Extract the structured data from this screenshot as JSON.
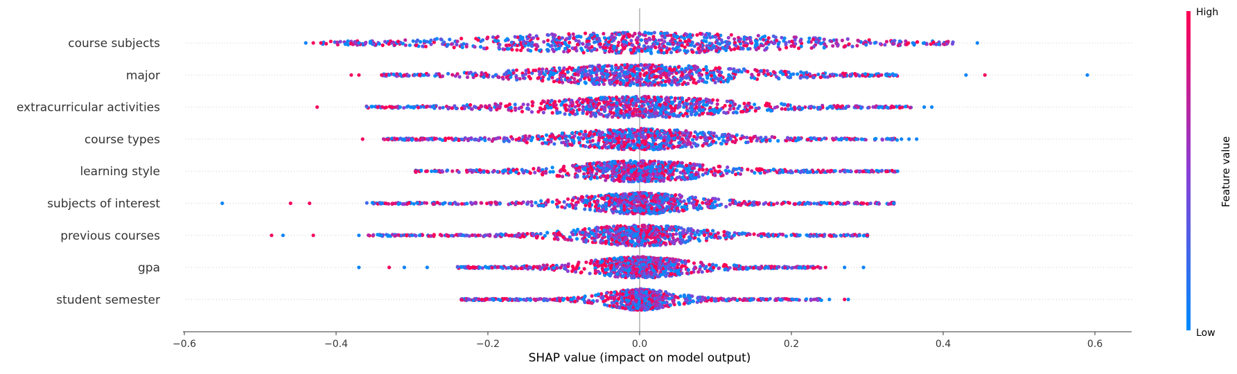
{
  "chart_data": {
    "type": "scatter",
    "subtype": "shap-beeswarm",
    "xlabel": "SHAP value (impact on model output)",
    "xlim": [
      -0.6,
      0.65
    ],
    "x_ticks": [
      -0.6,
      -0.4,
      -0.2,
      0.0,
      0.2,
      0.4,
      0.6
    ],
    "x_tick_labels": [
      "−0.6",
      "−0.4",
      "−0.2",
      "0.0",
      "0.2",
      "0.4",
      "0.6"
    ],
    "zero_line": 0,
    "colorbar": {
      "title": "Feature value",
      "high_label": "High",
      "low_label": "Low",
      "high_color": "#ff0052",
      "low_color": "#008bfb"
    },
    "features": [
      {
        "name": "course subjects",
        "min": -0.44,
        "max": 0.445,
        "spread": 0.42,
        "core": 0.17,
        "outliers": [
          -0.44,
          -0.43,
          -0.42,
          -0.37,
          0.31,
          0.36,
          0.375,
          0.445
        ]
      },
      {
        "name": "major",
        "min": -0.38,
        "max": 0.59,
        "spread": 0.34,
        "core": 0.11,
        "outliers": [
          -0.38,
          -0.37,
          -0.34,
          -0.33,
          -0.31,
          0.27,
          0.43,
          0.455,
          0.59
        ]
      },
      {
        "name": "extracurricular activities",
        "min": -0.425,
        "max": 0.385,
        "spread": 0.36,
        "core": 0.1,
        "outliers": [
          -0.425,
          -0.345,
          -0.3,
          0.265,
          0.335,
          0.375,
          0.385
        ]
      },
      {
        "name": "course types",
        "min": -0.365,
        "max": 0.365,
        "spread": 0.34,
        "core": 0.08,
        "outliers": [
          -0.365,
          -0.32,
          -0.31,
          -0.3,
          0.285,
          0.31,
          0.33,
          0.345,
          0.355,
          0.365
        ]
      },
      {
        "name": "learning style",
        "min": -0.295,
        "max": 0.34,
        "spread": 0.34,
        "core": 0.07,
        "outliers": [
          -0.295,
          -0.28,
          -0.27,
          0.275,
          0.295,
          0.315,
          0.34
        ]
      },
      {
        "name": "subjects of interest",
        "min": -0.55,
        "max": 0.335,
        "spread": 0.36,
        "core": 0.06,
        "outliers": [
          -0.55,
          -0.46,
          -0.435,
          -0.34,
          -0.335,
          0.27,
          0.295,
          0.335
        ]
      },
      {
        "name": "previous courses",
        "min": -0.485,
        "max": 0.3,
        "spread": 0.36,
        "core": 0.06,
        "outliers": [
          -0.485,
          -0.47,
          -0.43,
          -0.37,
          -0.34,
          -0.3,
          -0.29,
          0.24,
          0.265,
          0.29,
          0.3
        ]
      },
      {
        "name": "gpa",
        "min": -0.37,
        "max": 0.3,
        "spread": 0.24,
        "core": 0.05,
        "outliers": [
          -0.37,
          -0.33,
          -0.31,
          -0.28,
          0.245,
          0.27,
          0.295
        ]
      },
      {
        "name": "student semester",
        "min": -0.235,
        "max": 0.275,
        "spread": 0.24,
        "core": 0.03,
        "outliers": [
          0.25,
          0.27,
          0.275
        ]
      }
    ]
  }
}
